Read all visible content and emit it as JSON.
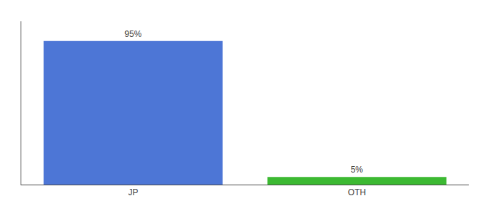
{
  "chart_data": {
    "type": "bar",
    "categories": [
      "JP",
      "OTH"
    ],
    "values": [
      95,
      5
    ],
    "value_labels": [
      "95%",
      "5%"
    ],
    "data_labels": true,
    "colors": [
      "#4d76d6",
      "#3cb932"
    ],
    "ylim": [
      0,
      108
    ],
    "grid": false,
    "tick_labels": "x"
  }
}
